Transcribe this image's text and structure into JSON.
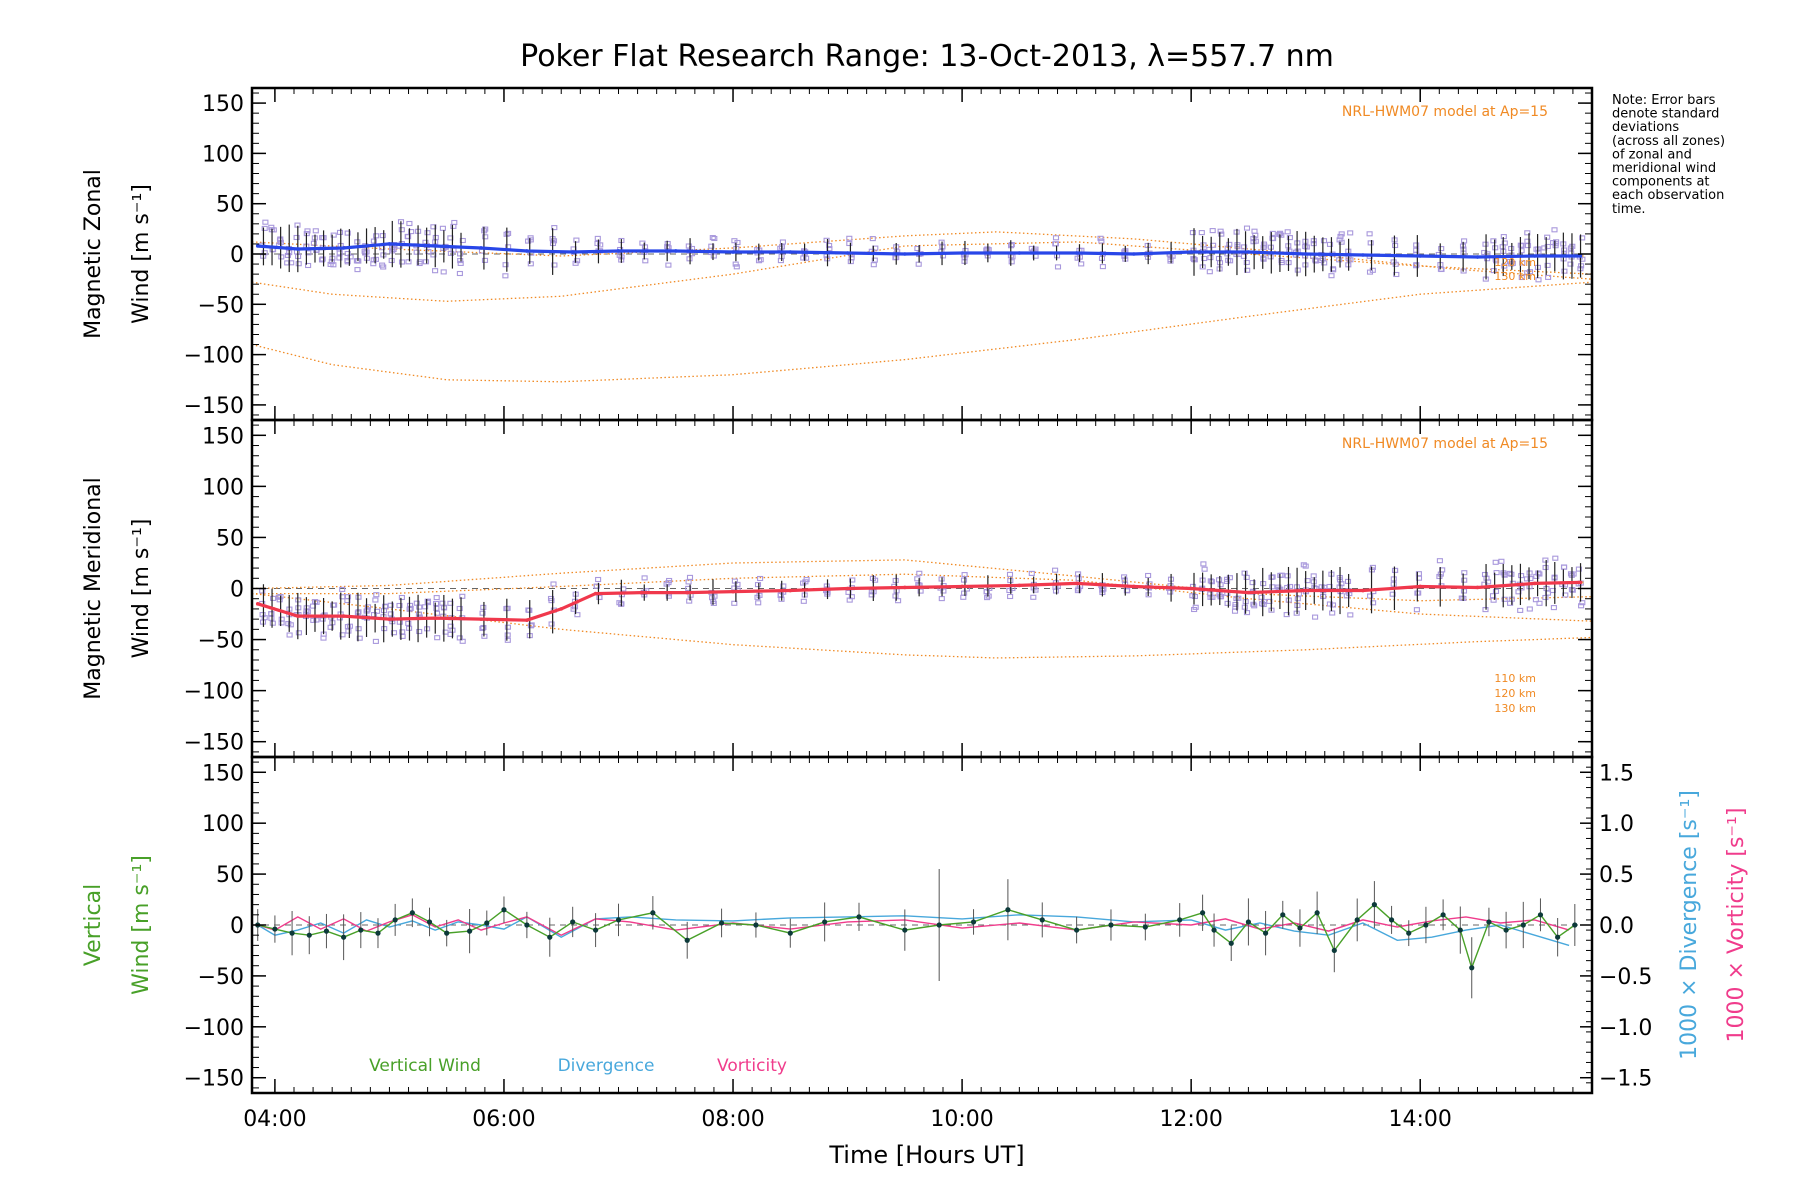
{
  "colors": {
    "axis": "#000000",
    "model": "#f08a24",
    "scatter": "#a898dc",
    "zonal": "#2846e8",
    "meridional": "#f0384c",
    "vertical": "#48a028",
    "divergence": "#48a8dc",
    "vorticity": "#f03c8c",
    "errorbar": "#222222",
    "zero_line": "#666666"
  },
  "chart_data": {
    "type": "line",
    "title": "Poker Flat Research Range: 13-Oct-2013, λ=557.7 nm",
    "xlabel": "Time [Hours UT]",
    "xlim": [
      3.8,
      15.5
    ],
    "xticks": [
      4,
      6,
      8,
      10,
      12,
      14
    ],
    "xtick_labels": [
      "04:00",
      "06:00",
      "08:00",
      "10:00",
      "12:00",
      "14:00"
    ],
    "note_lines": [
      "Note: Error bars",
      "denote standard",
      "deviations",
      "(across all zones)",
      "of zonal and",
      "meridional wind",
      "components at",
      "each observation",
      "time."
    ],
    "panels": [
      {
        "id": "zonal",
        "ylabel_line1": "Magnetic Zonal",
        "ylabel_line2": "Wind [m s⁻¹]",
        "ylim": [
          -165,
          165
        ],
        "yticks": [
          -150,
          -100,
          -50,
          0,
          50,
          100,
          150
        ],
        "ytick_labels": [
          "−150",
          "−100",
          "−50",
          "0",
          "50",
          "100",
          "150"
        ],
        "model_label": "NRL-HWM07 model at Ap=15",
        "model_alt_labels": [
          "120 km",
          "130 km"
        ],
        "series": [
          {
            "name": "Magnetic Zonal Wind",
            "x": [
              3.85,
              4.2,
              4.6,
              5.0,
              5.4,
              5.8,
              6.2,
              6.6,
              7.0,
              7.5,
              8.0,
              8.5,
              9.0,
              9.5,
              10.0,
              10.5,
              11.0,
              11.5,
              12.0,
              12.5,
              13.0,
              13.5,
              14.0,
              14.5,
              15.0,
              15.4
            ],
            "values": [
              8,
              5,
              6,
              10,
              8,
              6,
              3,
              2,
              3,
              3,
              2,
              2,
              1,
              0,
              1,
              1,
              1,
              0,
              2,
              2,
              0,
              -1,
              -2,
              -3,
              -2,
              -2
            ]
          }
        ],
        "models": [
          {
            "name": "HWM07 110 km",
            "x": [
              3.8,
              5.0,
              6.5,
              8.0,
              9.5,
              10.3,
              11.5,
              13.0,
              14.3,
              15.5
            ],
            "values": [
              12,
              5,
              -2,
              6,
              18,
              22,
              15,
              0,
              -15,
              -25
            ]
          },
          {
            "name": "HWM07 120 km",
            "x": [
              3.8,
              4.5,
              5.5,
              6.5,
              8.0,
              9.5,
              11.0,
              12.5,
              14.0,
              15.5
            ],
            "values": [
              -28,
              -40,
              -47,
              -42,
              -20,
              8,
              12,
              0,
              -12,
              -20
            ]
          },
          {
            "name": "HWM07 130 km",
            "x": [
              3.8,
              4.5,
              5.5,
              6.5,
              8.0,
              9.5,
              11.0,
              12.5,
              14.0,
              15.5
            ],
            "values": [
              -90,
              -110,
              -125,
              -127,
              -120,
              -105,
              -85,
              -62,
              -40,
              -28
            ]
          }
        ]
      },
      {
        "id": "meridional",
        "ylabel_line1": "Magnetic Meridional",
        "ylabel_line2": "Wind [m s⁻¹]",
        "ylim": [
          -165,
          165
        ],
        "yticks": [
          -150,
          -100,
          -50,
          0,
          50,
          100,
          150
        ],
        "ytick_labels": [
          "−150",
          "−100",
          "−50",
          "0",
          "50",
          "100",
          "150"
        ],
        "model_label": "NRL-HWM07 model at Ap=15",
        "model_alt_labels": [
          "110 km",
          "120 km",
          "130 km"
        ],
        "series": [
          {
            "name": "Magnetic Meridional Wind",
            "x": [
              3.85,
              4.2,
              4.6,
              5.0,
              5.4,
              5.8,
              6.2,
              6.5,
              6.8,
              7.2,
              7.6,
              8.0,
              8.5,
              9.0,
              9.5,
              10.0,
              10.5,
              11.0,
              11.5,
              12.0,
              12.5,
              13.0,
              13.5,
              14.0,
              14.5,
              15.0,
              15.4
            ],
            "values": [
              -15,
              -27,
              -27,
              -30,
              -29,
              -30,
              -31,
              -20,
              -5,
              -4,
              -4,
              -3,
              -2,
              0,
              1,
              2,
              3,
              5,
              2,
              0,
              -4,
              -2,
              -2,
              2,
              1,
              5,
              6
            ]
          }
        ],
        "models": [
          {
            "name": "HWM07 110 km",
            "x": [
              3.8,
              5.0,
              6.5,
              8.0,
              9.5,
              11.0,
              12.5,
              14.0,
              15.5
            ],
            "values": [
              0,
              3,
              15,
              25,
              28,
              12,
              -5,
              -12,
              -8
            ]
          },
          {
            "name": "HWM07 120 km",
            "x": [
              3.8,
              5.0,
              6.5,
              8.0,
              9.5,
              11.0,
              12.5,
              14.0,
              15.5
            ],
            "values": [
              -5,
              -5,
              2,
              10,
              14,
              8,
              -10,
              -25,
              -32
            ]
          },
          {
            "name": "HWM07 130 km",
            "x": [
              3.8,
              5.0,
              6.5,
              8.0,
              9.5,
              10.3,
              11.5,
              13.0,
              14.5,
              15.5
            ],
            "values": [
              -5,
              -20,
              -40,
              -55,
              -65,
              -68,
              -66,
              -60,
              -52,
              -48
            ]
          }
        ]
      },
      {
        "id": "vertical",
        "ylabel_line1": "Vertical",
        "ylabel_line2": "Wind [m s⁻¹]",
        "ylim": [
          -165,
          165
        ],
        "yticks": [
          -150,
          -100,
          -50,
          0,
          50,
          100,
          150
        ],
        "ytick_labels": [
          "−150",
          "−100",
          "−50",
          "0",
          "50",
          "100",
          "150"
        ],
        "right_ylim": [
          -1.65,
          1.65
        ],
        "right_yticks": [
          -1.5,
          -1.0,
          -0.5,
          0.0,
          0.5,
          1.0,
          1.5
        ],
        "right_ytick_labels": [
          "−1.5",
          "−1.0",
          "−0.5",
          "0.0",
          "0.5",
          "1.0",
          "1.5"
        ],
        "right_label_div": "1000 × Divergence [s⁻¹]",
        "right_label_vor": "1000 × Vorticity [s⁻¹]",
        "legend": [
          "Vertical Wind",
          "Divergence",
          "Vorticity"
        ],
        "series": [
          {
            "name": "Vertical Wind",
            "x": [
              3.85,
              4.0,
              4.15,
              4.3,
              4.45,
              4.6,
              4.75,
              4.9,
              5.05,
              5.2,
              5.35,
              5.5,
              5.7,
              5.85,
              6.0,
              6.2,
              6.4,
              6.6,
              6.8,
              7.0,
              7.3,
              7.6,
              7.9,
              8.2,
              8.5,
              8.8,
              9.1,
              9.5,
              9.8,
              10.1,
              10.4,
              10.7,
              11.0,
              11.3,
              11.6,
              11.9,
              12.1,
              12.2,
              12.35,
              12.5,
              12.65,
              12.8,
              12.95,
              13.1,
              13.25,
              13.45,
              13.6,
              13.75,
              13.9,
              14.05,
              14.2,
              14.35,
              14.45,
              14.6,
              14.75,
              14.9,
              15.05,
              15.2,
              15.35
            ],
            "values": [
              0,
              -4,
              -8,
              -10,
              -6,
              -12,
              -5,
              -8,
              5,
              12,
              3,
              -8,
              -6,
              2,
              15,
              0,
              -12,
              3,
              -5,
              5,
              12,
              -15,
              2,
              0,
              -8,
              3,
              8,
              -5,
              0,
              3,
              15,
              5,
              -5,
              0,
              -2,
              5,
              12,
              -5,
              -18,
              3,
              -8,
              10,
              -3,
              12,
              -25,
              5,
              20,
              5,
              -8,
              0,
              10,
              -5,
              -42,
              3,
              -5,
              0,
              10,
              -12,
              0
            ]
          },
          {
            "name": "Divergence",
            "x": [
              3.85,
              4.0,
              4.2,
              4.4,
              4.6,
              4.8,
              5.0,
              5.2,
              5.4,
              5.6,
              5.8,
              6.0,
              6.2,
              6.5,
              6.8,
              7.1,
              7.5,
              8.0,
              8.5,
              9.0,
              9.5,
              10.0,
              10.5,
              11.0,
              11.5,
              12.0,
              12.3,
              12.6,
              12.9,
              13.2,
              13.5,
              13.8,
              14.1,
              14.4,
              14.7,
              15.0,
              15.3
            ],
            "values": [
              0.0,
              -0.1,
              -0.05,
              0.02,
              -0.08,
              0.05,
              -0.02,
              0.04,
              -0.05,
              0.03,
              0.0,
              -0.04,
              0.08,
              -0.12,
              0.06,
              0.08,
              0.05,
              0.04,
              0.07,
              0.08,
              0.09,
              0.06,
              0.1,
              0.08,
              0.03,
              0.05,
              -0.05,
              0.02,
              -0.06,
              -0.1,
              0.02,
              -0.15,
              -0.12,
              -0.05,
              0.0,
              -0.1,
              -0.2
            ]
          },
          {
            "name": "Vorticity",
            "x": [
              3.85,
              4.0,
              4.2,
              4.4,
              4.6,
              4.8,
              5.0,
              5.2,
              5.4,
              5.6,
              5.8,
              6.0,
              6.2,
              6.5,
              6.8,
              7.1,
              7.5,
              8.0,
              8.5,
              9.0,
              9.5,
              10.0,
              10.5,
              11.0,
              11.5,
              12.0,
              12.3,
              12.6,
              12.9,
              13.2,
              13.5,
              13.8,
              14.1,
              14.4,
              14.7,
              15.0,
              15.3
            ],
            "values": [
              0.0,
              -0.05,
              0.08,
              -0.04,
              0.06,
              -0.06,
              0.03,
              0.1,
              -0.02,
              0.05,
              -0.05,
              0.02,
              0.08,
              -0.1,
              0.06,
              0.03,
              -0.05,
              0.02,
              -0.04,
              0.03,
              0.05,
              -0.03,
              0.02,
              -0.05,
              0.03,
              0.0,
              0.06,
              -0.04,
              0.02,
              -0.06,
              0.05,
              -0.02,
              0.04,
              0.08,
              0.02,
              0.05,
              -0.05
            ]
          }
        ]
      }
    ]
  }
}
